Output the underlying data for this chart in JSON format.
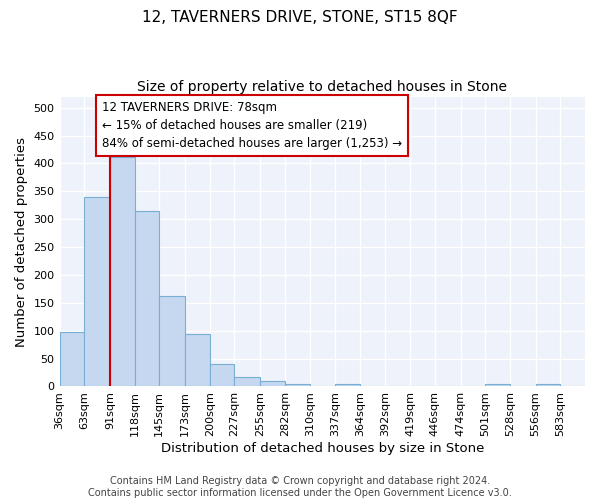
{
  "title": "12, TAVERNERS DRIVE, STONE, ST15 8QF",
  "subtitle": "Size of property relative to detached houses in Stone",
  "xlabel": "Distribution of detached houses by size in Stone",
  "ylabel": "Number of detached properties",
  "bar_color": "#c5d8f0",
  "bar_edge_color": "#7aafd4",
  "background_color": "#eef2fb",
  "grid_color": "#ffffff",
  "bins": [
    36,
    63,
    91,
    118,
    145,
    173,
    200,
    227,
    255,
    282,
    310,
    337,
    364,
    392,
    419,
    446,
    474,
    501,
    528,
    556,
    583,
    610
  ],
  "bin_labels": [
    "36sqm",
    "63sqm",
    "91sqm",
    "118sqm",
    "145sqm",
    "173sqm",
    "200sqm",
    "227sqm",
    "255sqm",
    "282sqm",
    "310sqm",
    "337sqm",
    "364sqm",
    "392sqm",
    "419sqm",
    "446sqm",
    "474sqm",
    "501sqm",
    "528sqm",
    "556sqm",
    "583sqm"
  ],
  "values": [
    97,
    340,
    411,
    315,
    163,
    94,
    41,
    17,
    10,
    5,
    0,
    5,
    0,
    0,
    0,
    0,
    0,
    4,
    0,
    4,
    0
  ],
  "vline_x": 91,
  "vline_color": "#cc0000",
  "annotation_line1": "12 TAVERNERS DRIVE: 78sqm",
  "annotation_line2": "← 15% of detached houses are smaller (219)",
  "annotation_line3": "84% of semi-detached houses are larger (1,253) →",
  "annotation_bbox_facecolor": "#ffffff",
  "annotation_bbox_edgecolor": "#cc0000",
  "ylim": [
    0,
    520
  ],
  "yticks": [
    0,
    50,
    100,
    150,
    200,
    250,
    300,
    350,
    400,
    450,
    500
  ],
  "footer_line1": "Contains HM Land Registry data © Crown copyright and database right 2024.",
  "footer_line2": "Contains public sector information licensed under the Open Government Licence v3.0.",
  "title_fontsize": 11,
  "subtitle_fontsize": 10,
  "axis_label_fontsize": 9.5,
  "tick_fontsize": 8,
  "annotation_fontsize": 8.5,
  "footer_fontsize": 7
}
